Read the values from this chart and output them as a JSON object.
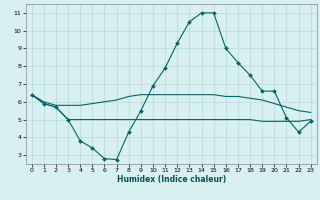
{
  "xlabel": "Humidex (Indice chaleur)",
  "bg_color": "#d9f0f0",
  "grid_color": "#b8dada",
  "line_color": "#006666",
  "xlim": [
    -0.5,
    23.5
  ],
  "ylim": [
    2.5,
    11.5
  ],
  "yticks": [
    3,
    4,
    5,
    6,
    7,
    8,
    9,
    10,
    11
  ],
  "xticks": [
    0,
    1,
    2,
    3,
    4,
    5,
    6,
    7,
    8,
    9,
    10,
    11,
    12,
    13,
    14,
    15,
    16,
    17,
    18,
    19,
    20,
    21,
    22,
    23
  ],
  "line1_x": [
    0,
    1,
    2,
    3,
    4,
    5,
    6,
    7,
    8,
    9,
    10,
    11,
    12,
    13,
    14,
    15,
    16,
    17,
    18,
    19,
    20,
    21,
    22,
    23
  ],
  "line1_y": [
    6.4,
    5.9,
    5.7,
    5.0,
    3.8,
    3.4,
    2.8,
    2.75,
    4.3,
    5.5,
    6.9,
    7.9,
    9.3,
    10.5,
    11.0,
    11.0,
    9.0,
    8.2,
    7.5,
    6.6,
    6.6,
    5.1,
    4.3,
    4.9
  ],
  "line2_x": [
    0,
    1,
    2,
    3,
    4,
    5,
    6,
    7,
    8,
    9,
    10,
    11,
    12,
    13,
    14,
    15,
    16,
    17,
    18,
    19,
    20,
    21,
    22,
    23
  ],
  "line2_y": [
    6.4,
    5.9,
    5.7,
    5.0,
    5.0,
    5.0,
    5.0,
    5.0,
    5.0,
    5.0,
    5.0,
    5.0,
    5.0,
    5.0,
    5.0,
    5.0,
    5.0,
    5.0,
    5.0,
    4.9,
    4.9,
    4.9,
    4.9,
    5.0
  ],
  "line3_x": [
    0,
    1,
    2,
    3,
    4,
    5,
    6,
    7,
    8,
    9,
    10,
    11,
    12,
    13,
    14,
    15,
    16,
    17,
    18,
    19,
    20,
    21,
    22,
    23
  ],
  "line3_y": [
    6.4,
    6.0,
    5.8,
    5.8,
    5.8,
    5.9,
    6.0,
    6.1,
    6.3,
    6.4,
    6.4,
    6.4,
    6.4,
    6.4,
    6.4,
    6.4,
    6.3,
    6.3,
    6.2,
    6.1,
    5.9,
    5.7,
    5.5,
    5.4
  ]
}
